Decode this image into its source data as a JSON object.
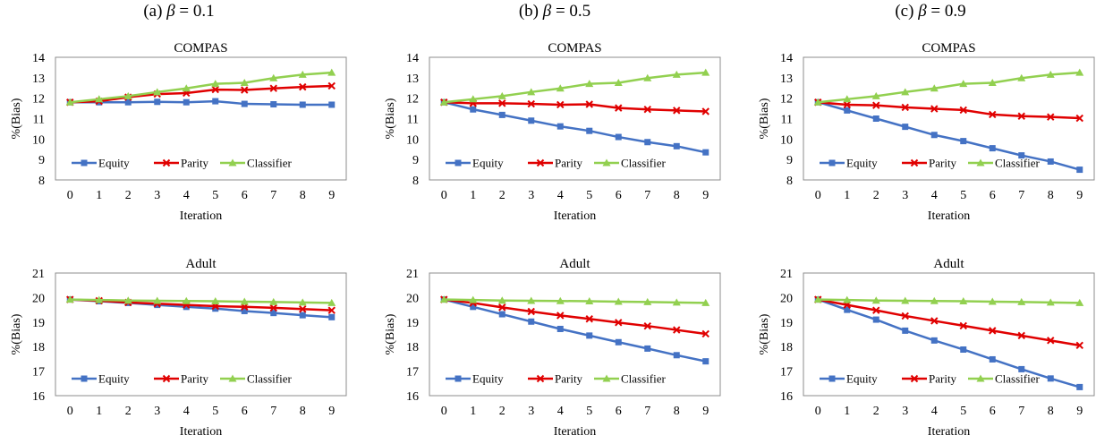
{
  "column_titles": [
    {
      "prefix": "(a) ",
      "symbol": "β",
      "suffix": " = 0.1"
    },
    {
      "prefix": "(b) ",
      "symbol": "β",
      "suffix": " = 0.5"
    },
    {
      "prefix": "(c) ",
      "symbol": "β",
      "suffix": " = 0.9"
    }
  ],
  "colors": {
    "Equity": "#4472C4",
    "Parity": "#E00000",
    "Classifier": "#92D050"
  },
  "chart_data": [
    {
      "type": "line",
      "title": "COMPAS",
      "xlabel": "Iteration",
      "ylabel": "%(Bias)",
      "x": [
        0,
        1,
        2,
        3,
        4,
        5,
        6,
        7,
        8,
        9
      ],
      "ylim": [
        8,
        14
      ],
      "yticks": [
        8,
        9,
        10,
        11,
        12,
        13,
        14
      ],
      "grid": false,
      "legend": "bottom-left",
      "series": [
        {
          "name": "Equity",
          "values": [
            11.8,
            11.8,
            11.8,
            11.82,
            11.8,
            11.85,
            11.72,
            11.7,
            11.68,
            11.68
          ]
        },
        {
          "name": "Parity",
          "values": [
            11.8,
            11.85,
            12.05,
            12.2,
            12.25,
            12.42,
            12.4,
            12.48,
            12.55,
            12.6
          ]
        },
        {
          "name": "Classifier",
          "values": [
            11.8,
            11.95,
            12.1,
            12.3,
            12.48,
            12.7,
            12.75,
            12.98,
            13.15,
            13.25
          ]
        }
      ]
    },
    {
      "type": "line",
      "title": "COMPAS",
      "xlabel": "Iteration",
      "ylabel": "%(Bias)",
      "x": [
        0,
        1,
        2,
        3,
        4,
        5,
        6,
        7,
        8,
        9
      ],
      "ylim": [
        8,
        14
      ],
      "yticks": [
        8,
        9,
        10,
        11,
        12,
        13,
        14
      ],
      "grid": false,
      "legend": "bottom-left",
      "series": [
        {
          "name": "Equity",
          "values": [
            11.8,
            11.45,
            11.18,
            10.9,
            10.62,
            10.4,
            10.1,
            9.85,
            9.65,
            9.35
          ]
        },
        {
          "name": "Parity",
          "values": [
            11.8,
            11.75,
            11.75,
            11.72,
            11.68,
            11.7,
            11.52,
            11.45,
            11.4,
            11.35
          ]
        },
        {
          "name": "Classifier",
          "values": [
            11.8,
            11.95,
            12.1,
            12.3,
            12.48,
            12.7,
            12.75,
            12.98,
            13.15,
            13.25
          ]
        }
      ]
    },
    {
      "type": "line",
      "title": "COMPAS",
      "xlabel": "Iteration",
      "ylabel": "%(Bias)",
      "x": [
        0,
        1,
        2,
        3,
        4,
        5,
        6,
        7,
        8,
        9
      ],
      "ylim": [
        8,
        14
      ],
      "yticks": [
        8,
        9,
        10,
        11,
        12,
        13,
        14
      ],
      "grid": false,
      "legend": "bottom-left",
      "series": [
        {
          "name": "Equity",
          "values": [
            11.8,
            11.4,
            11.0,
            10.6,
            10.2,
            9.9,
            9.55,
            9.2,
            8.9,
            8.5
          ]
        },
        {
          "name": "Parity",
          "values": [
            11.8,
            11.68,
            11.65,
            11.55,
            11.48,
            11.42,
            11.2,
            11.12,
            11.08,
            11.02
          ]
        },
        {
          "name": "Classifier",
          "values": [
            11.8,
            11.95,
            12.1,
            12.3,
            12.48,
            12.7,
            12.75,
            12.98,
            13.15,
            13.25
          ]
        }
      ]
    },
    {
      "type": "line",
      "title": "Adult",
      "xlabel": "Iteration",
      "ylabel": "%(Bias)",
      "x": [
        0,
        1,
        2,
        3,
        4,
        5,
        6,
        7,
        8,
        9
      ],
      "ylim": [
        16,
        21
      ],
      "yticks": [
        16,
        17,
        18,
        19,
        20,
        21
      ],
      "grid": false,
      "legend": "bottom-left",
      "series": [
        {
          "name": "Equity",
          "values": [
            19.92,
            19.85,
            19.78,
            19.7,
            19.62,
            19.55,
            19.45,
            19.37,
            19.28,
            19.2
          ]
        },
        {
          "name": "Parity",
          "values": [
            19.92,
            19.87,
            19.8,
            19.75,
            19.7,
            19.65,
            19.62,
            19.58,
            19.53,
            19.48
          ]
        },
        {
          "name": "Classifier",
          "values": [
            19.92,
            19.9,
            19.88,
            19.87,
            19.86,
            19.85,
            19.83,
            19.82,
            19.8,
            19.78
          ]
        }
      ]
    },
    {
      "type": "line",
      "title": "Adult",
      "xlabel": "Iteration",
      "ylabel": "%(Bias)",
      "x": [
        0,
        1,
        2,
        3,
        4,
        5,
        6,
        7,
        8,
        9
      ],
      "ylim": [
        16,
        21
      ],
      "yticks": [
        16,
        17,
        18,
        19,
        20,
        21
      ],
      "grid": false,
      "legend": "bottom-left",
      "series": [
        {
          "name": "Equity",
          "values": [
            19.92,
            19.62,
            19.32,
            19.02,
            18.72,
            18.45,
            18.18,
            17.92,
            17.65,
            17.4
          ]
        },
        {
          "name": "Parity",
          "values": [
            19.92,
            19.78,
            19.6,
            19.43,
            19.27,
            19.13,
            18.98,
            18.84,
            18.68,
            18.52
          ]
        },
        {
          "name": "Classifier",
          "values": [
            19.92,
            19.9,
            19.88,
            19.87,
            19.86,
            19.85,
            19.83,
            19.82,
            19.8,
            19.78
          ]
        }
      ]
    },
    {
      "type": "line",
      "title": "Adult",
      "xlabel": "Iteration",
      "ylabel": "%(Bias)",
      "x": [
        0,
        1,
        2,
        3,
        4,
        5,
        6,
        7,
        8,
        9
      ],
      "ylim": [
        16,
        21
      ],
      "yticks": [
        16,
        17,
        18,
        19,
        20,
        21
      ],
      "grid": false,
      "legend": "bottom-left",
      "series": [
        {
          "name": "Equity",
          "values": [
            19.92,
            19.5,
            19.1,
            18.65,
            18.25,
            17.88,
            17.48,
            17.08,
            16.7,
            16.35
          ]
        },
        {
          "name": "Parity",
          "values": [
            19.92,
            19.7,
            19.48,
            19.25,
            19.05,
            18.85,
            18.65,
            18.45,
            18.25,
            18.05
          ]
        },
        {
          "name": "Classifier",
          "values": [
            19.92,
            19.9,
            19.88,
            19.87,
            19.86,
            19.85,
            19.83,
            19.82,
            19.8,
            19.78
          ]
        }
      ]
    }
  ]
}
